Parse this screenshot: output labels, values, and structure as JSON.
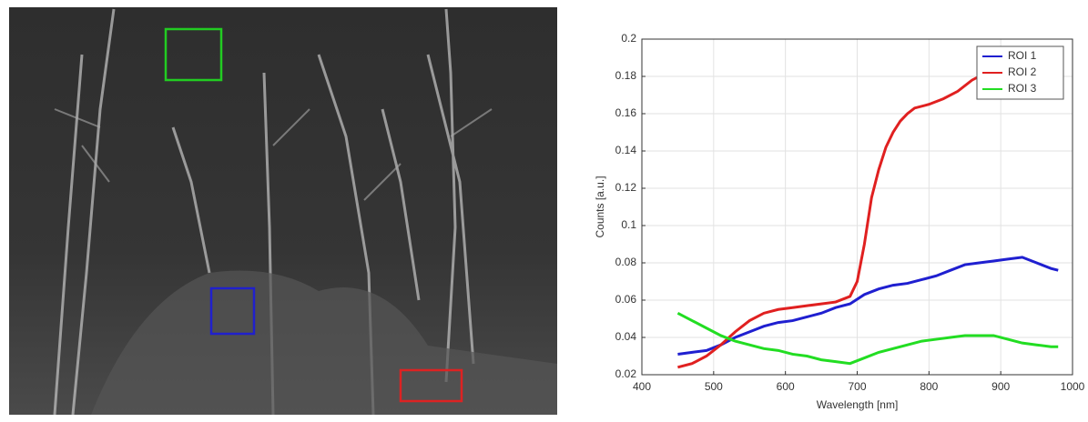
{
  "chart_data": {
    "type": "line",
    "xlabel": "Wavelength [nm]",
    "ylabel": "Counts [a.u.]",
    "xlim": [
      400,
      1000
    ],
    "xticks": [
      400,
      500,
      600,
      700,
      800,
      900,
      1000
    ],
    "ylim": [
      0.02,
      0.2
    ],
    "yticks": [
      0.02,
      0.04,
      0.06,
      0.08,
      0.1,
      0.12,
      0.14,
      0.16,
      0.18,
      0.2
    ],
    "grid": true,
    "legend": "upper right",
    "series": [
      {
        "name": "ROI 1",
        "color": "#1f1fd0",
        "x": [
          450,
          470,
          490,
          510,
          530,
          550,
          570,
          590,
          610,
          630,
          650,
          670,
          690,
          710,
          730,
          750,
          770,
          790,
          810,
          830,
          850,
          870,
          890,
          910,
          930,
          950,
          970,
          980
        ],
        "values": [
          0.031,
          0.032,
          0.033,
          0.036,
          0.04,
          0.043,
          0.046,
          0.048,
          0.049,
          0.051,
          0.053,
          0.056,
          0.058,
          0.063,
          0.066,
          0.068,
          0.069,
          0.071,
          0.073,
          0.076,
          0.079,
          0.08,
          0.081,
          0.082,
          0.083,
          0.08,
          0.077,
          0.076
        ]
      },
      {
        "name": "ROI 2",
        "color": "#e02020",
        "x": [
          450,
          470,
          490,
          510,
          530,
          550,
          570,
          590,
          610,
          630,
          650,
          670,
          690,
          700,
          710,
          720,
          730,
          740,
          750,
          760,
          770,
          780,
          800,
          820,
          840,
          860,
          880,
          900,
          920,
          930
        ],
        "values": [
          0.024,
          0.026,
          0.03,
          0.036,
          0.043,
          0.049,
          0.053,
          0.055,
          0.056,
          0.057,
          0.058,
          0.059,
          0.062,
          0.07,
          0.09,
          0.115,
          0.13,
          0.142,
          0.15,
          0.156,
          0.16,
          0.163,
          0.165,
          0.168,
          0.172,
          0.178,
          0.182,
          0.188,
          0.192,
          0.195
        ]
      },
      {
        "name": "ROI 3",
        "color": "#22dd22",
        "x": [
          450,
          470,
          490,
          510,
          530,
          550,
          570,
          590,
          610,
          630,
          650,
          670,
          690,
          710,
          730,
          750,
          770,
          790,
          810,
          830,
          850,
          870,
          890,
          910,
          930,
          950,
          970,
          980
        ],
        "values": [
          0.053,
          0.049,
          0.045,
          0.041,
          0.038,
          0.036,
          0.034,
          0.033,
          0.031,
          0.03,
          0.028,
          0.027,
          0.026,
          0.029,
          0.032,
          0.034,
          0.036,
          0.038,
          0.039,
          0.04,
          0.041,
          0.041,
          0.041,
          0.039,
          0.037,
          0.036,
          0.035,
          0.035
        ]
      }
    ]
  }
}
